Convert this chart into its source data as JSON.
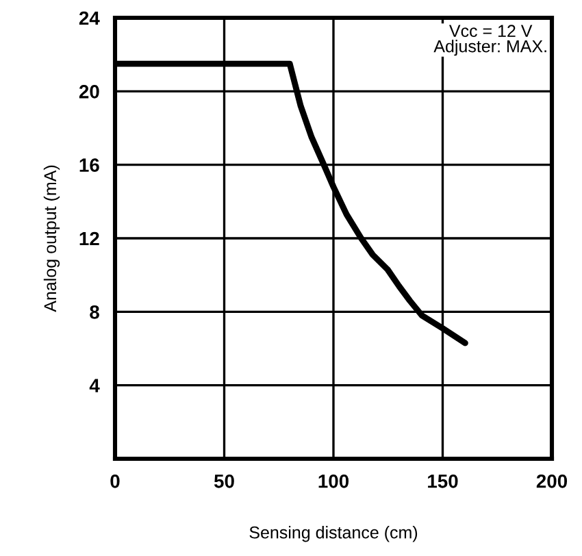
{
  "chart_data": {
    "type": "line",
    "xlabel": "Sensing distance (cm)",
    "ylabel": "Analog output (mA)",
    "annotations": [
      "Vcc = 12 V\nAdjuster: MAX."
    ],
    "series": [
      {
        "color": "#000000",
        "x": [
          0,
          80,
          85,
          90,
          95.6,
          100,
          106,
          112.7,
          118,
          124.8,
          130,
          135,
          140.5,
          150,
          160.3
        ],
        "values": [
          21.5,
          21.5,
          19.2,
          17.5,
          16.0,
          14.8,
          13.3,
          12.0,
          11.1,
          10.3,
          9.4,
          8.6,
          7.8,
          7.1,
          6.3
        ]
      }
    ],
    "xlim": [
      0,
      200
    ],
    "ylim": [
      0,
      24
    ],
    "xticks": [
      0,
      50,
      100,
      150,
      200
    ],
    "yticks": [
      4,
      8,
      12,
      16,
      20,
      24
    ],
    "grid": true,
    "marker": "none",
    "line_style": "solid"
  }
}
